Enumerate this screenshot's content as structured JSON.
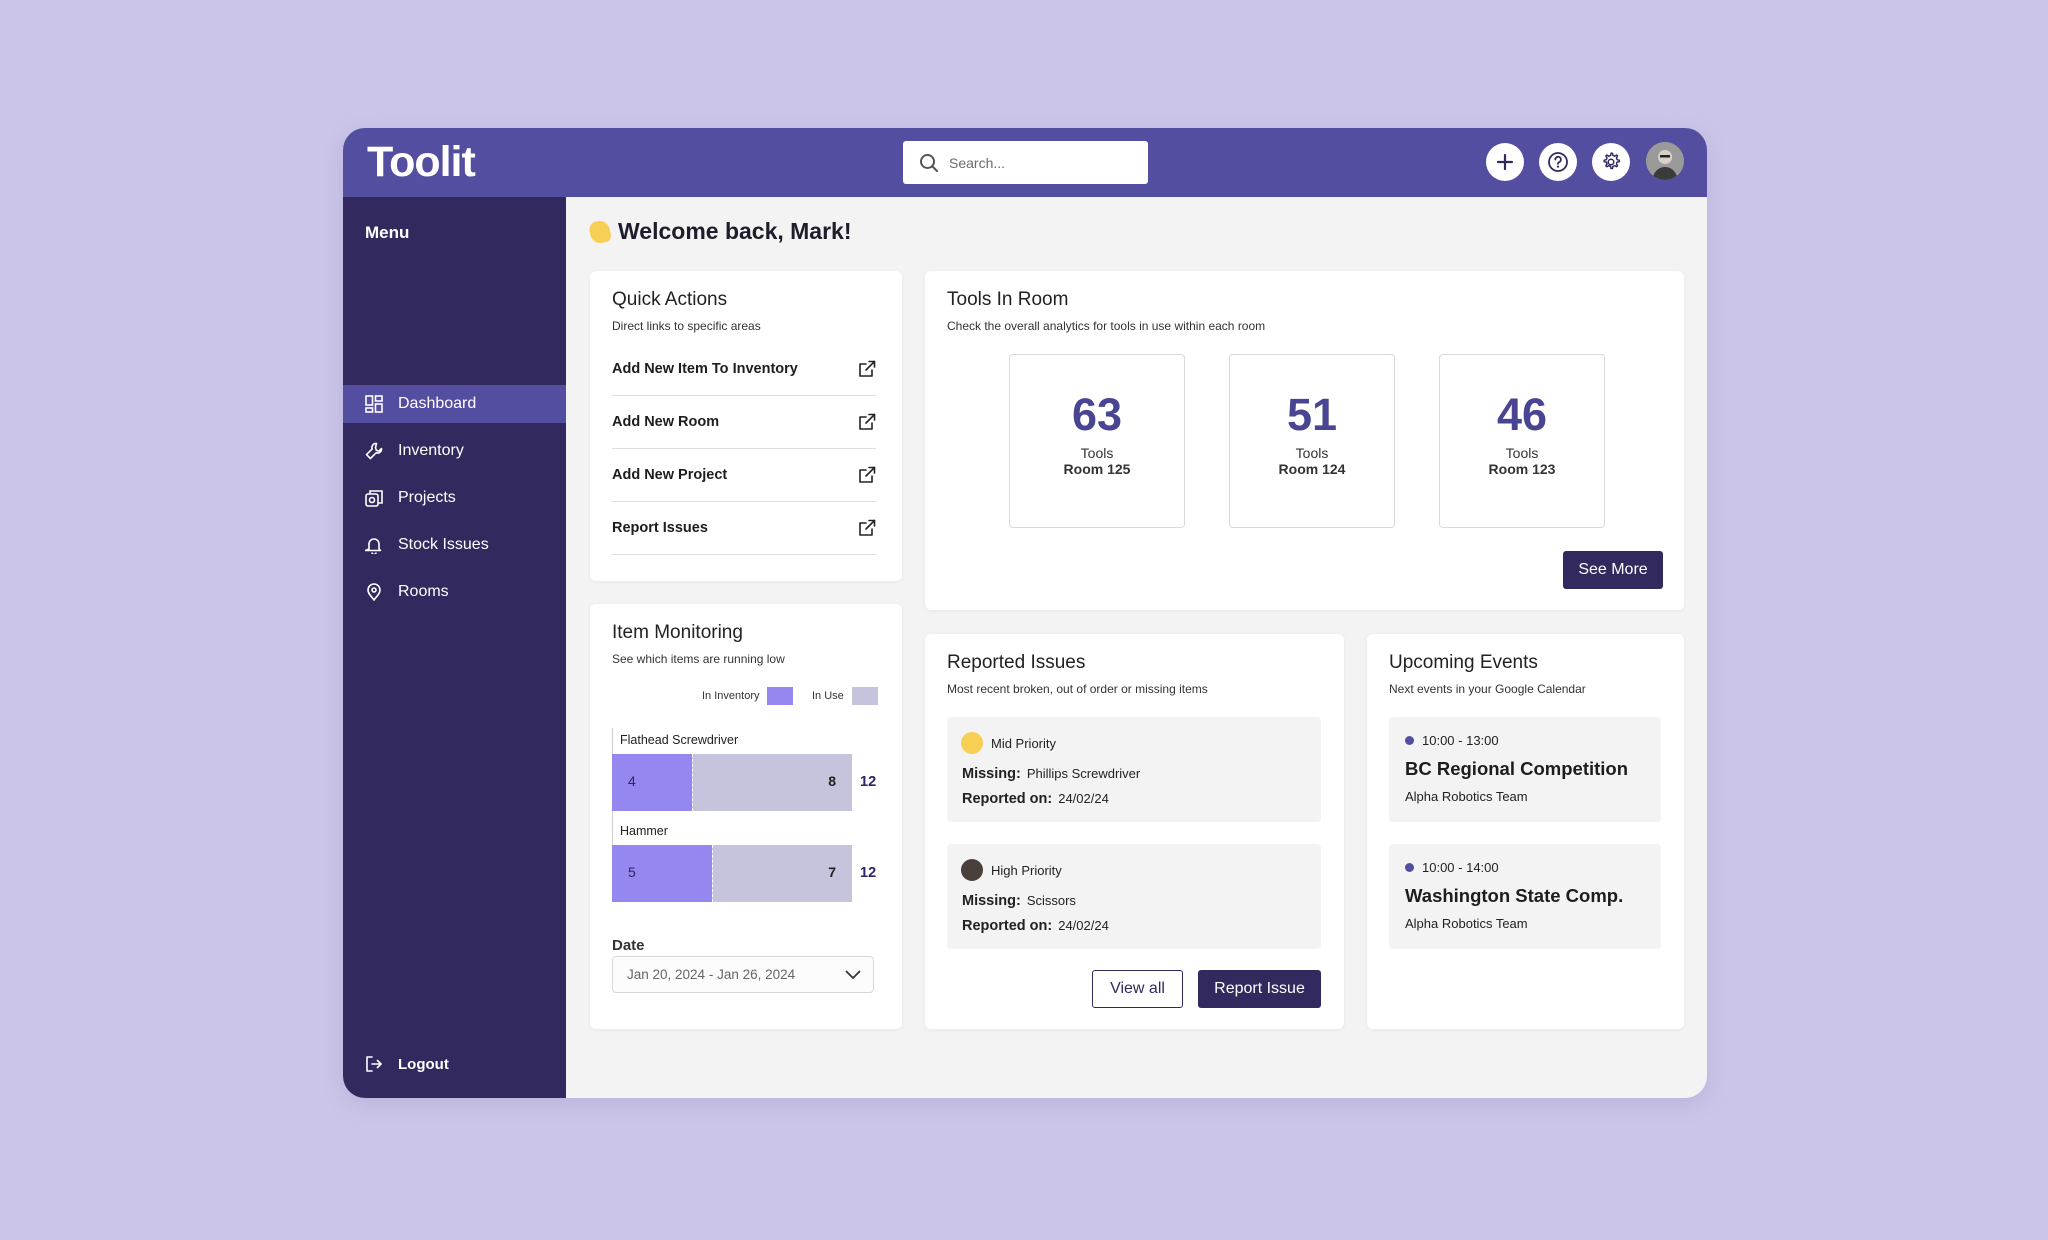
{
  "header": {
    "logo": "Toolit",
    "search_placeholder": "Search...",
    "add_icon": "plus-icon",
    "help_icon": "question-icon",
    "settings_icon": "gear-icon"
  },
  "sidebar": {
    "menu_title": "Menu",
    "items": [
      {
        "label": "Dashboard",
        "icon": "dashboard-icon",
        "active": true
      },
      {
        "label": "Inventory",
        "icon": "wrench-icon",
        "active": false
      },
      {
        "label": "Projects",
        "icon": "projects-icon",
        "active": false
      },
      {
        "label": "Stock Issues",
        "icon": "bell-icon",
        "active": false
      },
      {
        "label": "Rooms",
        "icon": "location-pin-icon",
        "active": false
      }
    ],
    "logout": "Logout"
  },
  "welcome": "Welcome back, Mark!",
  "quick_actions": {
    "title": "Quick Actions",
    "subtitle": "Direct links to specific areas",
    "items": [
      {
        "label": "Add New Item To Inventory"
      },
      {
        "label": "Add New Room"
      },
      {
        "label": "Add New Project"
      },
      {
        "label": "Report Issues"
      }
    ]
  },
  "tools_in_room": {
    "title": "Tools In Room",
    "subtitle": "Check the overall analytics for tools in use within each room",
    "rooms": [
      {
        "count": "63",
        "label": "Tools",
        "room": "Room 125"
      },
      {
        "count": "51",
        "label": "Tools",
        "room": "Room 124"
      },
      {
        "count": "46",
        "label": "Tools",
        "room": "Room 123"
      }
    ],
    "see_more": "See More"
  },
  "item_monitoring": {
    "title": "Item Monitoring",
    "subtitle": "See which items are running low",
    "legend": [
      {
        "label": "In Inventory",
        "color": "#9487f0"
      },
      {
        "label": "In Use",
        "color": "#c6c3dd"
      }
    ],
    "items": [
      {
        "name": "Flathead Screwdriver",
        "in_inventory": 4,
        "in_use": 8,
        "total": 12
      },
      {
        "name": "Hammer",
        "in_inventory": 5,
        "in_use": 7,
        "total": 12
      }
    ],
    "date_label": "Date",
    "date_value": "Jan 20, 2024 - Jan 26, 2024"
  },
  "reported_issues": {
    "title": "Reported Issues",
    "subtitle": "Most recent broken, out of order or missing items",
    "issues": [
      {
        "priority": "Mid Priority",
        "priority_color": "#f7cf55",
        "missing_label": "Missing:",
        "item": "Phillips Screwdriver",
        "reported_label": "Reported on:",
        "date": "24/02/24"
      },
      {
        "priority": "High Priority",
        "priority_color": "#4a3f3a",
        "missing_label": "Missing:",
        "item": "Scissors",
        "reported_label": "Reported on:",
        "date": "24/02/24"
      }
    ],
    "view_all": "View all",
    "report_issue": "Report Issue"
  },
  "upcoming_events": {
    "title": "Upcoming Events",
    "subtitle": "Next events in your Google Calendar",
    "events": [
      {
        "time": "10:00 - 13:00",
        "name": "BC Regional Competition",
        "team": "Alpha Robotics Team"
      },
      {
        "time": "10:00 - 14:00",
        "name": "Washington State Comp.",
        "team": "Alpha Robotics Team"
      }
    ]
  },
  "colors": {
    "primary": "#534e9f",
    "sidebar": "#322a5f",
    "background": "#cbc6e9"
  }
}
